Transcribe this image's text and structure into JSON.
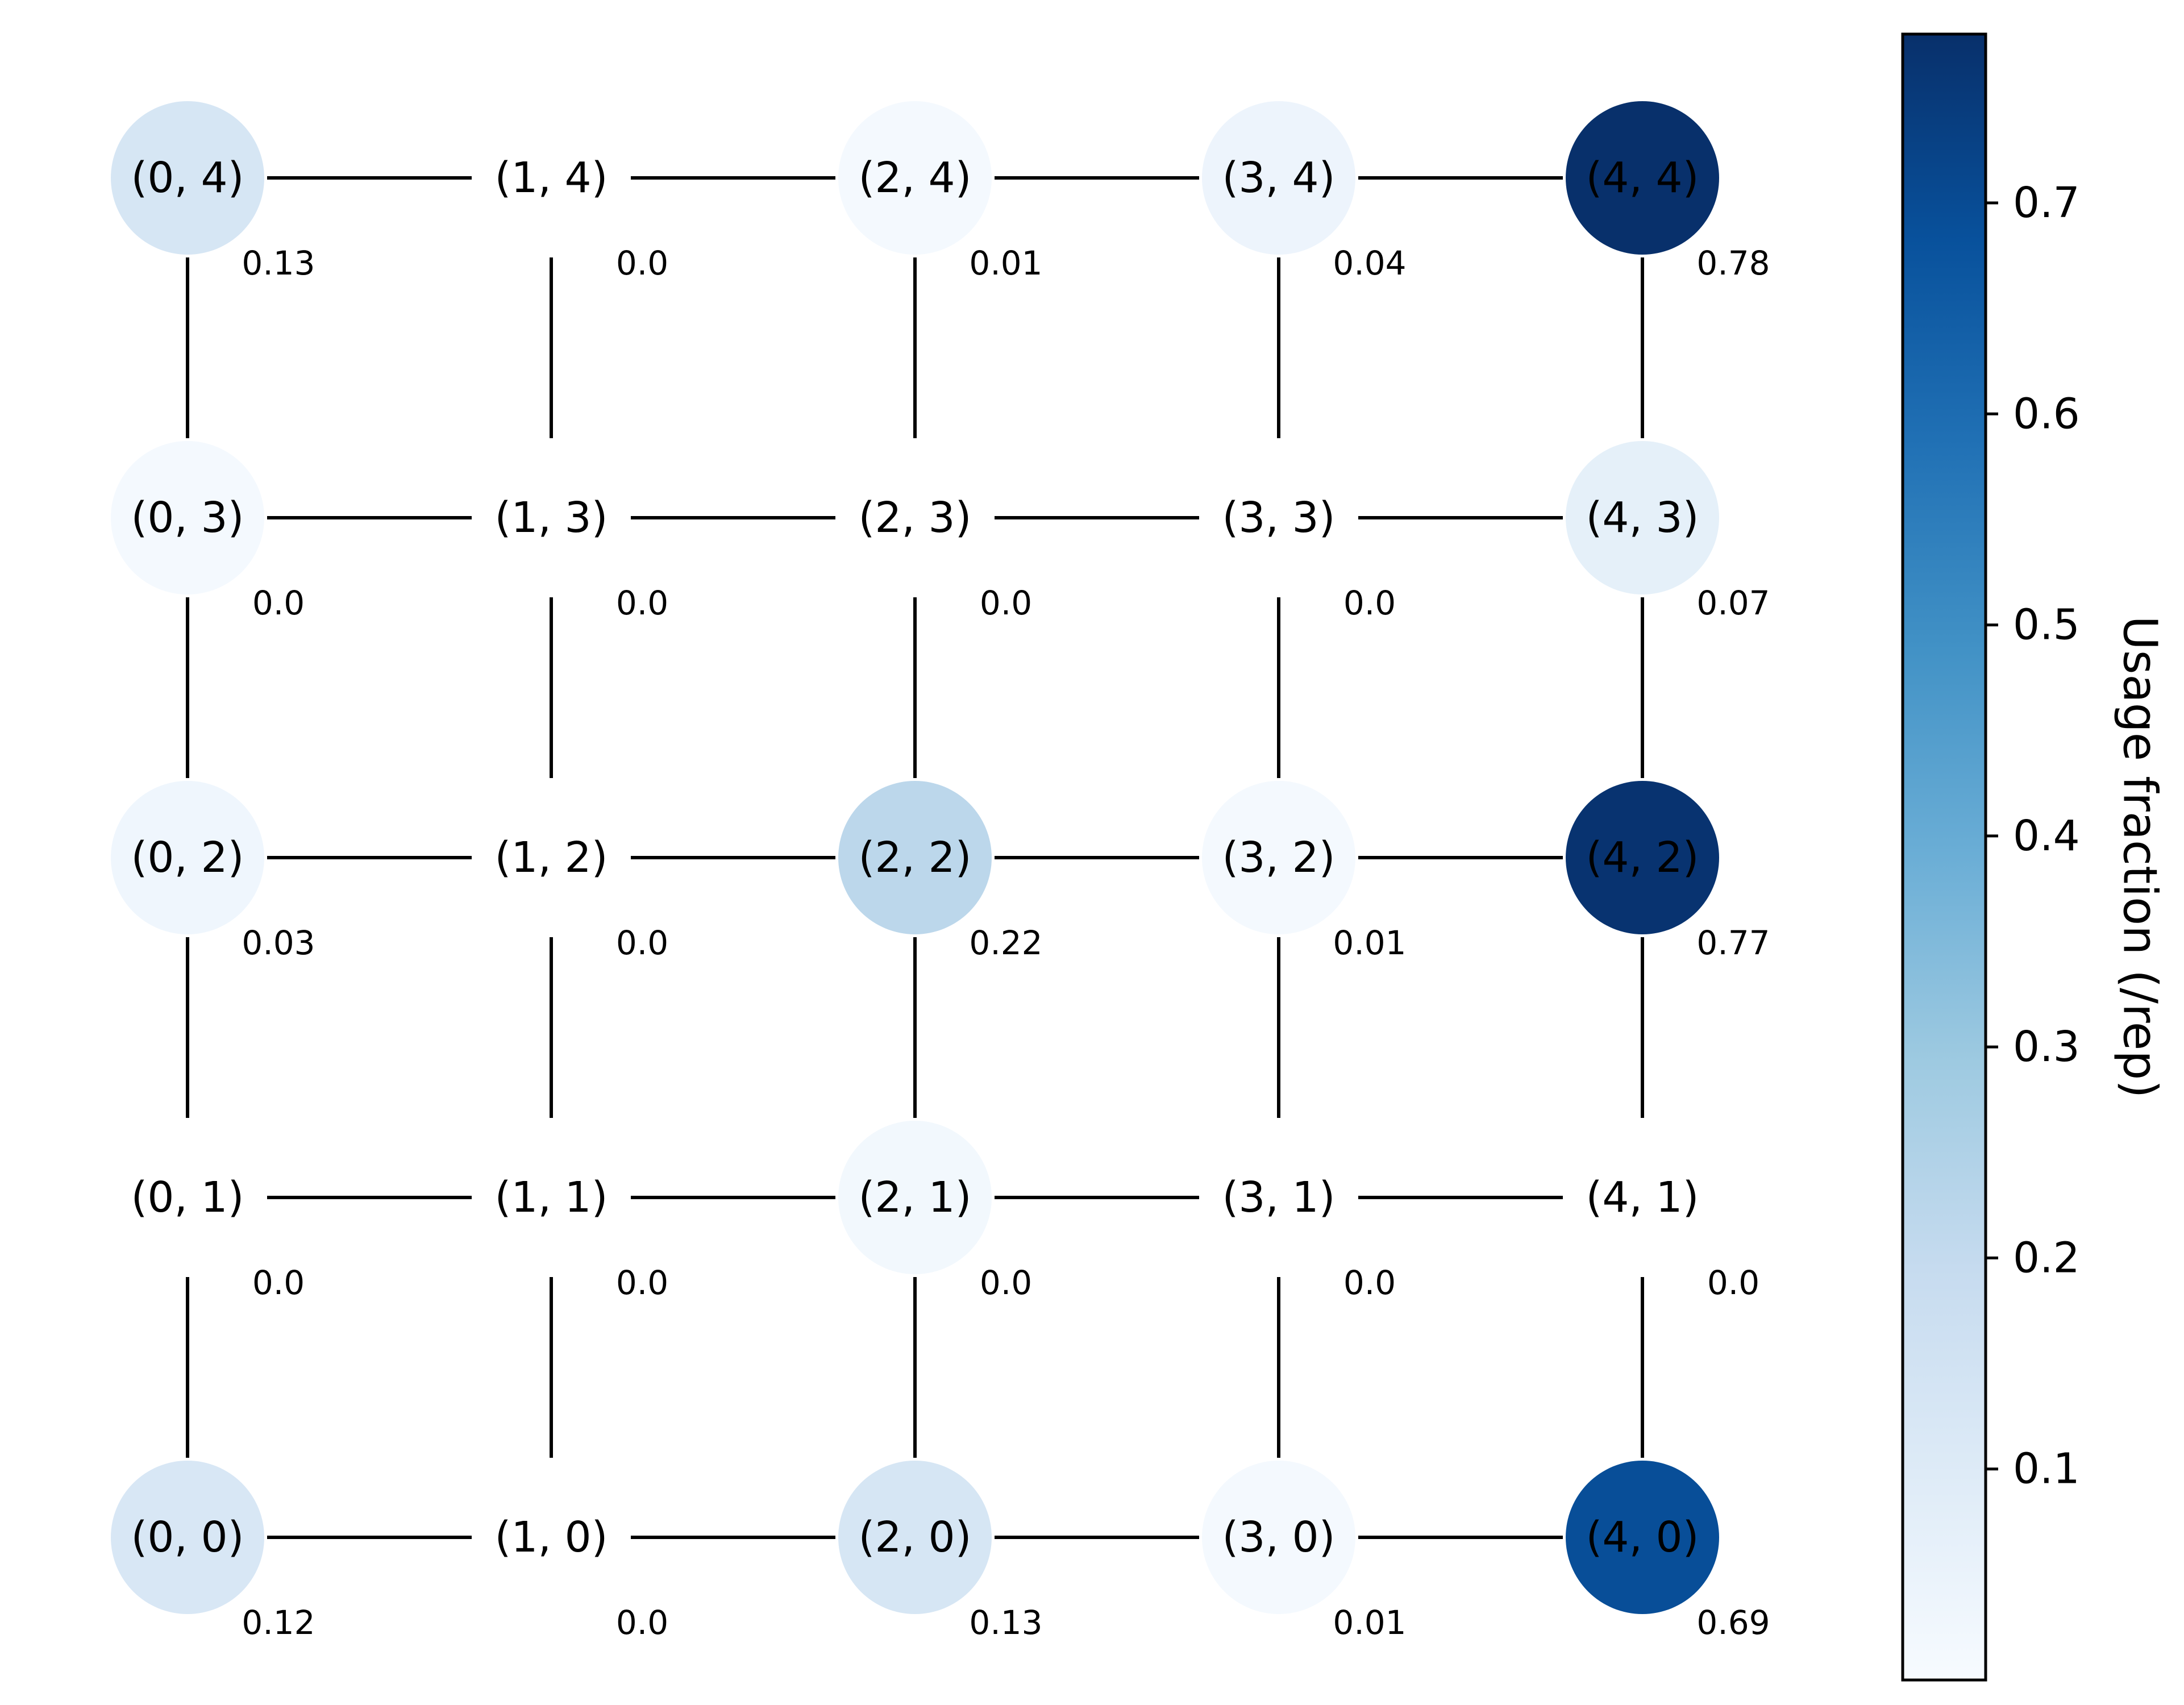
{
  "chart_data": {
    "type": "network",
    "grid_size": [
      5,
      5
    ],
    "nodes": [
      {
        "label": "(0, 0)",
        "x": 0,
        "y": 0,
        "value": 0.12,
        "value_label": "0.12"
      },
      {
        "label": "(1, 0)",
        "x": 1,
        "y": 0,
        "value": 0.0,
        "value_label": "0.0"
      },
      {
        "label": "(2, 0)",
        "x": 2,
        "y": 0,
        "value": 0.13,
        "value_label": "0.13"
      },
      {
        "label": "(3, 0)",
        "x": 3,
        "y": 0,
        "value": 0.01,
        "value_label": "0.01"
      },
      {
        "label": "(4, 0)",
        "x": 4,
        "y": 0,
        "value": 0.69,
        "value_label": "0.69"
      },
      {
        "label": "(0, 1)",
        "x": 0,
        "y": 1,
        "value": 0.0,
        "value_label": "0.0"
      },
      {
        "label": "(1, 1)",
        "x": 1,
        "y": 1,
        "value": 0.0,
        "value_label": "0.0"
      },
      {
        "label": "(2, 1)",
        "x": 2,
        "y": 1,
        "value": 0.0,
        "value_label": "0.0",
        "fill_value": 0.02
      },
      {
        "label": "(3, 1)",
        "x": 3,
        "y": 1,
        "value": 0.0,
        "value_label": "0.0"
      },
      {
        "label": "(4, 1)",
        "x": 4,
        "y": 1,
        "value": 0.0,
        "value_label": "0.0"
      },
      {
        "label": "(0, 2)",
        "x": 0,
        "y": 2,
        "value": 0.03,
        "value_label": "0.03"
      },
      {
        "label": "(1, 2)",
        "x": 1,
        "y": 2,
        "value": 0.0,
        "value_label": "0.0"
      },
      {
        "label": "(2, 2)",
        "x": 2,
        "y": 2,
        "value": 0.22,
        "value_label": "0.22"
      },
      {
        "label": "(3, 2)",
        "x": 3,
        "y": 2,
        "value": 0.01,
        "value_label": "0.01"
      },
      {
        "label": "(4, 2)",
        "x": 4,
        "y": 2,
        "value": 0.77,
        "value_label": "0.77"
      },
      {
        "label": "(0, 3)",
        "x": 0,
        "y": 3,
        "value": 0.0,
        "value_label": "0.0",
        "fill_value": 0.01
      },
      {
        "label": "(1, 3)",
        "x": 1,
        "y": 3,
        "value": 0.0,
        "value_label": "0.0"
      },
      {
        "label": "(2, 3)",
        "x": 2,
        "y": 3,
        "value": 0.0,
        "value_label": "0.0"
      },
      {
        "label": "(3, 3)",
        "x": 3,
        "y": 3,
        "value": 0.0,
        "value_label": "0.0"
      },
      {
        "label": "(4, 3)",
        "x": 4,
        "y": 3,
        "value": 0.07,
        "value_label": "0.07"
      },
      {
        "label": "(0, 4)",
        "x": 0,
        "y": 4,
        "value": 0.13,
        "value_label": "0.13"
      },
      {
        "label": "(1, 4)",
        "x": 1,
        "y": 4,
        "value": 0.0,
        "value_label": "0.0"
      },
      {
        "label": "(2, 4)",
        "x": 2,
        "y": 4,
        "value": 0.01,
        "value_label": "0.01"
      },
      {
        "label": "(3, 4)",
        "x": 3,
        "y": 4,
        "value": 0.04,
        "value_label": "0.04"
      },
      {
        "label": "(4, 4)",
        "x": 4,
        "y": 4,
        "value": 0.78,
        "value_label": "0.78"
      }
    ],
    "edges": "grid-4-neighbour",
    "colormap": "Blues",
    "colorbar": {
      "label": "Usage fraction (/rep)",
      "range": [
        0.0,
        0.78
      ],
      "ticks": [
        0.1,
        0.2,
        0.3,
        0.4,
        0.5,
        0.6,
        0.7
      ],
      "tick_labels": [
        "0.1",
        "0.2",
        "0.3",
        "0.4",
        "0.5",
        "0.6",
        "0.7"
      ]
    },
    "title": "",
    "xlabel": "",
    "ylabel": ""
  }
}
